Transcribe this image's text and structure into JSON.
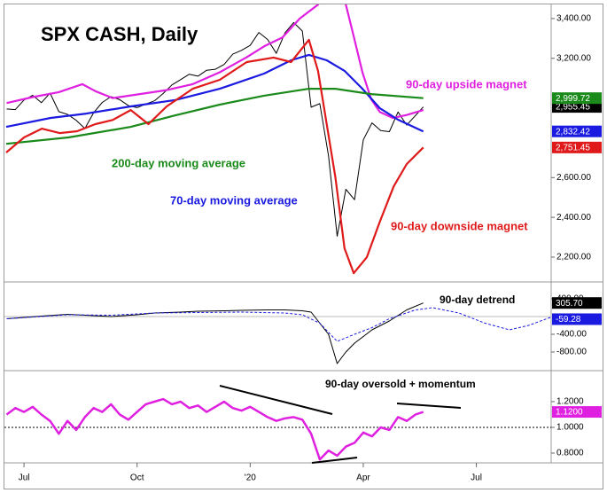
{
  "chart_data": [
    {
      "type": "line",
      "title": "SPX CASH, Daily",
      "xlim": [
        -2.25,
        60.6
      ],
      "ylim": [
        2075,
        3471
      ],
      "yticks": [
        {
          "value": 2200,
          "label": "2,200.00"
        },
        {
          "value": 2400,
          "label": "2,400.00"
        },
        {
          "value": 2600,
          "label": "2,600.00"
        },
        {
          "value": 3200,
          "label": "3,200.00"
        },
        {
          "value": 3400,
          "label": "3,400.00"
        }
      ],
      "series": [
        {
          "color": "#000000",
          "readout": 2955.45,
          "readout_label": "2,955.45",
          "x": [
            -2,
            -1,
            0,
            1,
            2,
            3,
            4,
            5,
            6,
            7,
            8,
            9,
            10,
            11,
            12,
            13,
            14,
            15,
            16,
            17,
            18,
            19,
            20,
            21,
            22,
            23,
            24,
            25,
            26,
            27,
            28,
            29,
            30,
            31,
            32,
            33,
            34,
            35,
            36,
            37,
            38,
            39,
            40,
            41,
            42,
            43,
            44,
            45.9
          ],
          "values": [
            2945,
            2942,
            2990,
            3014,
            2977,
            3025,
            2932,
            2918,
            2888,
            2847,
            2926,
            2978,
            3007,
            2992,
            2962,
            2952,
            2970,
            2986,
            3023,
            3066,
            3093,
            3120,
            3110,
            3140,
            3145,
            3169,
            3221,
            3240,
            3265,
            3330,
            3295,
            3225,
            3328,
            3380,
            3337,
            2954,
            2972,
            2711,
            2305,
            2541,
            2489,
            2790,
            2875,
            2837,
            2831,
            2930,
            2864,
            2955.45
          ]
        },
        {
          "name": "90-day upside magnet",
          "color": "#e020e0",
          "x": [
            -2,
            1,
            4,
            6.7,
            8.2,
            10.2,
            13.3,
            16.4,
            19.4,
            22.5,
            25.6,
            27.6,
            29.7,
            31.7,
            33.8,
            35,
            37,
            37.9,
            38.9,
            39.9,
            40.9,
            42.4,
            44,
            45.9
          ],
          "values": [
            2975,
            3005,
            3030,
            3070,
            3035,
            3000,
            3020,
            3040,
            3070,
            3130,
            3205,
            3260,
            3305,
            3400,
            3470,
            3600,
            3470,
            3310,
            3130,
            2995,
            2930,
            2900,
            2915,
            2940
          ]
        },
        {
          "name": "70-day moving average",
          "color": "#1a1ae0",
          "readout": 2832.42,
          "readout_label": "2,832.42",
          "x": [
            -2.05,
            3.07,
            7.16,
            12.28,
            17.4,
            22.5,
            27.6,
            30.7,
            32.75,
            34.8,
            36.85,
            38.9,
            40.9,
            43,
            45.9
          ],
          "values": [
            2855,
            2900,
            2922,
            2958,
            2990,
            3047,
            3123,
            3190,
            3217,
            3190,
            3137,
            3047,
            2949,
            2891,
            2832.42
          ]
        },
        {
          "name": "200-day moving average",
          "color": "#1a8a1a",
          "readout": 2999.72,
          "readout_label": "2,999.72",
          "x": [
            -2.05,
            5.1,
            12.28,
            17.4,
            22.5,
            27.6,
            32.75,
            35.8,
            39.9,
            45.9
          ],
          "values": [
            2770,
            2802,
            2855,
            2913,
            2967,
            3012,
            3047,
            3047,
            3020,
            2999.72
          ]
        },
        {
          "name": "90-day downside magnet",
          "color": "#e01a1a",
          "readout": 2751.45,
          "readout_label": "2,751.45",
          "x": [
            -2.05,
            0,
            2.05,
            4.1,
            6.1,
            8.2,
            10.2,
            12.28,
            14.3,
            16.4,
            19.4,
            22.5,
            25.6,
            28.7,
            30.7,
            32.75,
            33.8,
            34.8,
            35.8,
            36.85,
            37.9,
            39.4,
            40.9,
            42.5,
            44,
            45.9
          ],
          "values": [
            2726,
            2802,
            2846,
            2824,
            2833,
            2869,
            2890,
            2940,
            2869,
            2958,
            3047,
            3092,
            3181,
            3204,
            3181,
            3293,
            3137,
            2869,
            2601,
            2244,
            2119,
            2199,
            2378,
            2556,
            2668,
            2751.45
          ]
        }
      ]
    },
    {
      "type": "line",
      "xlim": [
        -2.25,
        60.6
      ],
      "ylim": [
        -1220,
        780
      ],
      "reference_line": 0,
      "yticks": [
        {
          "value": 400,
          "label": "400.00"
        },
        {
          "value": -400,
          "label": "-400.00"
        },
        {
          "value": -800,
          "label": "-800.00"
        }
      ],
      "series": [
        {
          "name": "90-day detrend",
          "color": "#000000",
          "readout": 305.7,
          "readout_label": "305.70",
          "x": [
            -2,
            2,
            5,
            8,
            10,
            13,
            15,
            18,
            20,
            23,
            25,
            28,
            30,
            32,
            33,
            34,
            35,
            36,
            37,
            38,
            39,
            40,
            42,
            44,
            45.9
          ],
          "values": [
            -50,
            10,
            50,
            20,
            0,
            40,
            80,
            100,
            120,
            130,
            140,
            150,
            150,
            130,
            100,
            -150,
            -400,
            -1060,
            -800,
            -600,
            -450,
            -300,
            -100,
            150,
            305.7
          ]
        },
        {
          "color": "#1a1ae0",
          "dashed": true,
          "readout": -59.28,
          "readout_label": "-59.28",
          "x": [
            -2,
            5,
            10,
            15,
            20,
            25,
            30,
            32,
            34,
            36,
            38,
            40,
            42,
            45,
            47,
            50,
            53,
            55.8,
            58,
            60.5
          ],
          "values": [
            -50,
            40,
            30,
            80,
            90,
            100,
            80,
            40,
            -150,
            -560,
            -400,
            -250,
            -50,
            150,
            200,
            80,
            -150,
            -300,
            -200,
            -20
          ]
        }
      ]
    },
    {
      "type": "line",
      "xlim": [
        -2.25,
        60.6
      ],
      "ylim": [
        0.724,
        1.441
      ],
      "reference_line": 1,
      "xticks": [
        {
          "value": 0,
          "label": "Jul"
        },
        {
          "value": 13,
          "label": "Oct"
        },
        {
          "value": 26,
          "label": "'20"
        },
        {
          "value": 39,
          "label": "Apr"
        },
        {
          "value": 52,
          "label": "Jul"
        }
      ],
      "yticks": [
        {
          "value": 1.2,
          "label": "1.2000"
        },
        {
          "value": 1,
          "label": "1.0000"
        },
        {
          "value": 0.8,
          "label": "0.8000"
        }
      ],
      "series": [
        {
          "name": "90-day oversold + momentum",
          "color": "#e020e0",
          "readout": 1.12,
          "readout_label": "1.1200",
          "x": [
            -2,
            -1,
            0,
            1,
            2,
            3,
            4,
            5,
            6,
            7,
            8,
            9,
            10,
            11,
            12,
            13,
            14,
            15,
            16,
            17,
            18,
            19,
            20,
            21,
            22,
            23,
            24,
            25,
            26,
            27,
            28,
            29,
            30,
            31,
            32,
            33,
            34,
            35,
            36,
            37,
            38,
            39,
            40,
            41,
            42,
            43,
            44,
            45,
            45.9
          ],
          "values": [
            1.1,
            1.15,
            1.12,
            1.16,
            1.1,
            1.05,
            0.95,
            1.05,
            0.98,
            1.08,
            1.15,
            1.12,
            1.18,
            1.1,
            1.06,
            1.12,
            1.18,
            1.2,
            1.22,
            1.18,
            1.2,
            1.15,
            1.17,
            1.12,
            1.16,
            1.2,
            1.15,
            1.13,
            1.16,
            1.12,
            1.08,
            1.05,
            1.07,
            1.08,
            1.06,
            0.95,
            0.75,
            0.82,
            0.78,
            0.85,
            0.88,
            0.96,
            0.93,
            1.0,
            0.98,
            1.08,
            1.05,
            1.1,
            1.12
          ]
        }
      ]
    }
  ]
}
